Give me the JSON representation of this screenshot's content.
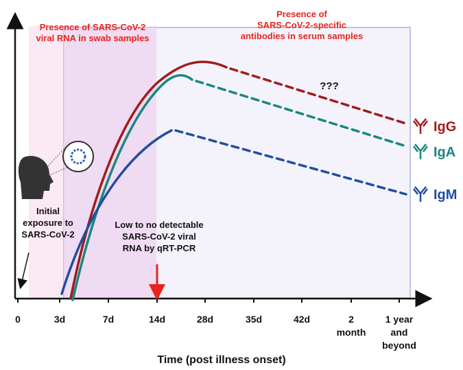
{
  "annotations": {
    "rna": [
      "Presence of SARS-CoV-2",
      "viral RNA in swab samples"
    ],
    "antibodies": [
      "Presence of",
      "SARS-CoV-2-specific",
      "antibodies in serum samples"
    ],
    "unknown": "???",
    "exposure": [
      "Initial",
      "exposure to",
      "SARS-CoV-2"
    ],
    "pcr": [
      "Low to no detectable",
      "SARS-CoV-2 viral",
      "RNA by qRT-PCR"
    ]
  },
  "x_axis": {
    "label": "Time (post illness onset)",
    "ticks": [
      [
        "0"
      ],
      [
        "3d"
      ],
      [
        "7d"
      ],
      [
        "14d"
      ],
      [
        "28d"
      ],
      [
        "35d"
      ],
      [
        "42d"
      ],
      [
        "2",
        "month"
      ],
      [
        "1 year",
        "and",
        "beyond"
      ]
    ]
  },
  "legend": [
    {
      "name": "IgG",
      "color": "#a01c1c"
    },
    {
      "name": "IgA",
      "color": "#17877f"
    },
    {
      "name": "IgM",
      "color": "#1f4ea0"
    }
  ]
}
